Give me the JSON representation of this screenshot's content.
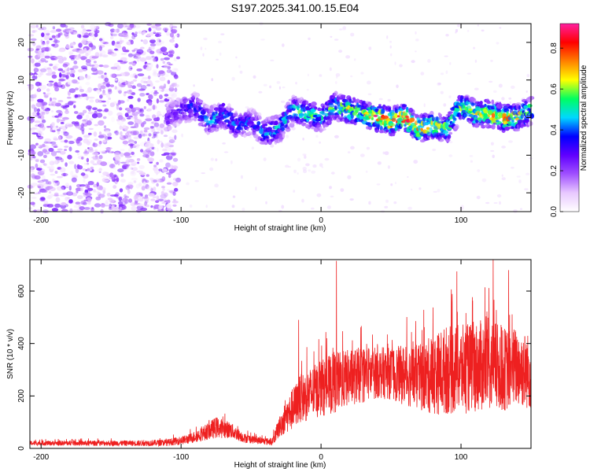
{
  "figure": {
    "title": "S197.2025.341.00.15.E04"
  },
  "chart_data": [
    {
      "type": "heatmap",
      "name": "spectrogram",
      "title": "",
      "xlabel": "Height of straight line (km)",
      "ylabel": "Frequency (Hz)",
      "xlim": [
        -208,
        150
      ],
      "ylim": [
        -25,
        25
      ],
      "x_ticks": [
        -200,
        -100,
        0,
        100
      ],
      "y_ticks": [
        -20,
        -10,
        0,
        10,
        20
      ],
      "colorbar": {
        "label": "Normalized spectral amplitude",
        "range": [
          0,
          0.92
        ],
        "ticks": [
          0.0,
          0.2,
          0.4,
          0.6,
          0.8
        ],
        "colormap": [
          "#ffffff",
          "#e8c8ff",
          "#a050ff",
          "#6000ff",
          "#0000ff",
          "#00d8ff",
          "#00ff60",
          "#ffff00",
          "#ff8000",
          "#ff0000",
          "#ff20a0"
        ]
      },
      "ridge": {
        "x": [
          -110,
          -100,
          -90,
          -80,
          -70,
          -60,
          -50,
          -40,
          -30,
          -20,
          -10,
          0,
          10,
          20,
          30,
          40,
          50,
          60,
          70,
          80,
          90,
          100,
          110,
          120,
          130,
          140,
          150
        ],
        "freq": [
          0,
          2,
          3,
          -1,
          1,
          -2,
          -1,
          -4,
          -3,
          2,
          1,
          0,
          3,
          2,
          1,
          0,
          -1,
          0,
          -3,
          -2,
          -3,
          3,
          1,
          1,
          0,
          0,
          2
        ],
        "peak_amplitude": [
          0.3,
          0.35,
          0.4,
          0.45,
          0.5,
          0.45,
          0.4,
          0.5,
          0.5,
          0.55,
          0.6,
          0.55,
          0.6,
          0.7,
          0.65,
          0.9,
          0.85,
          0.9,
          0.8,
          0.7,
          0.65,
          0.75,
          0.7,
          0.75,
          0.8,
          0.7,
          0.65
        ]
      },
      "noise_region": {
        "x_range": [
          -208,
          -110
        ],
        "freq_range": [
          -25,
          25
        ],
        "amplitude_range": [
          0.02,
          0.25
        ]
      }
    },
    {
      "type": "line",
      "name": "snr",
      "title": "",
      "xlabel": "Height of straight line (km)",
      "ylabel": "SNR (10 * v/v)",
      "xlim": [
        -208,
        150
      ],
      "ylim": [
        0,
        720
      ],
      "x_ticks": [
        -200,
        -100,
        0,
        100
      ],
      "y_ticks": [
        0,
        200,
        400,
        600
      ],
      "color": "#ee2020",
      "envelope": {
        "x": [
          -208,
          -130,
          -110,
          -95,
          -85,
          -75,
          -65,
          -55,
          -45,
          -35,
          -30,
          -25,
          -20,
          -15,
          -10,
          0,
          10,
          20,
          30,
          40,
          50,
          60,
          70,
          80,
          90,
          100,
          110,
          120,
          130,
          140,
          150
        ],
        "mean": [
          20,
          20,
          22,
          35,
          55,
          80,
          70,
          40,
          30,
          25,
          80,
          120,
          150,
          190,
          200,
          230,
          250,
          270,
          280,
          290,
          285,
          280,
          270,
          280,
          300,
          300,
          310,
          320,
          300,
          310,
          290
        ],
        "spread": [
          10,
          12,
          14,
          20,
          30,
          45,
          35,
          20,
          15,
          15,
          45,
          70,
          90,
          100,
          110,
          120,
          130,
          120,
          120,
          110,
          110,
          130,
          140,
          170,
          190,
          190,
          190,
          200,
          180,
          170,
          160
        ],
        "peaks": [
          {
            "x": 11,
            "y": 715
          },
          {
            "x": 97,
            "y": 675
          },
          {
            "x": 123,
            "y": 720
          },
          {
            "x": 134,
            "y": 680
          },
          {
            "x": -16,
            "y": 490
          }
        ]
      }
    }
  ]
}
